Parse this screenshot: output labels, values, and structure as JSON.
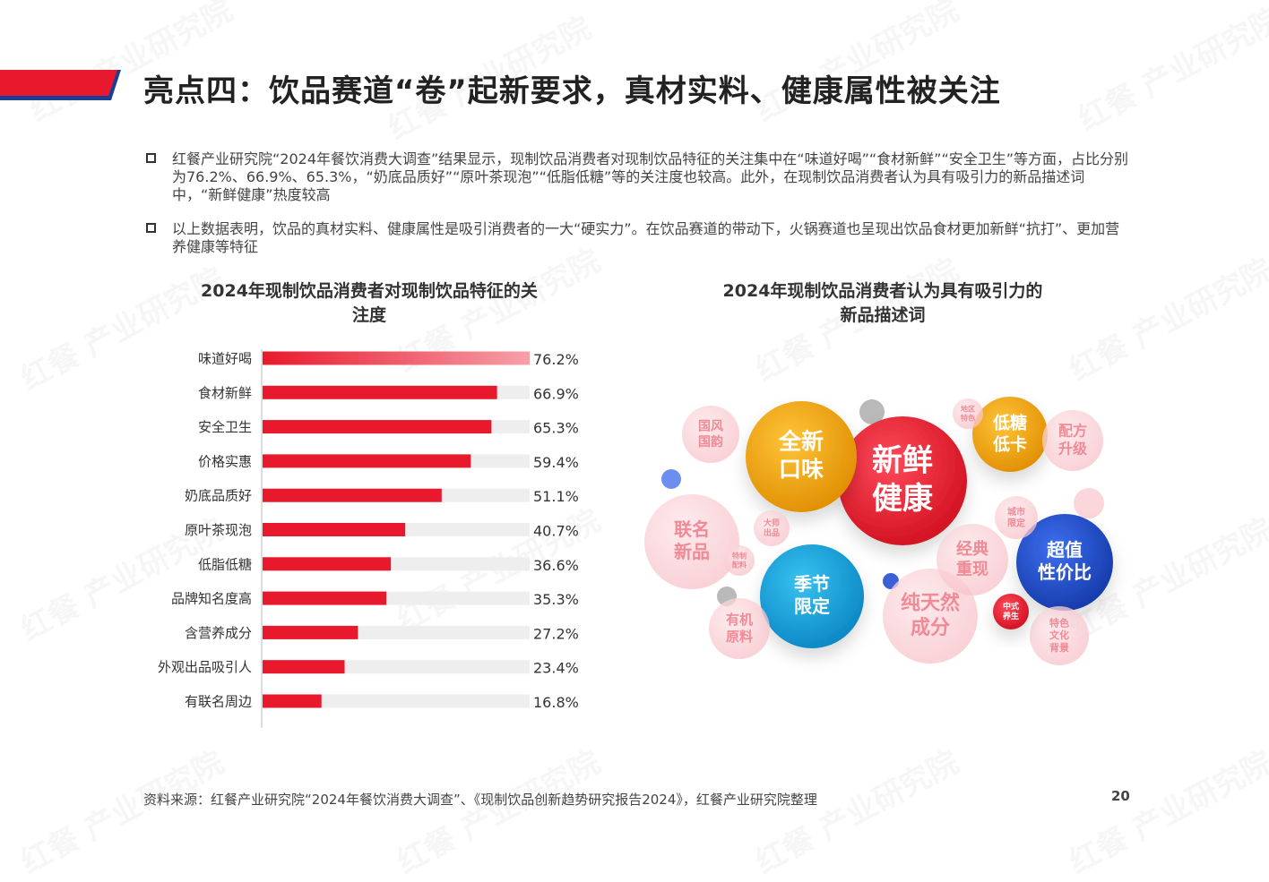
{
  "header": {
    "title": "亮点四：饮品赛道“卷”起新要求，真材实料、健康属性被关注",
    "accent_red": "#e8192c",
    "accent_blue": "#1c3f94"
  },
  "watermark_text": "红餐 产业研究院",
  "bullets": [
    "红餐产业研究院“2024年餐饮消费大调查”结果显示，现制饮品消费者对现制饮品特征的关注集中在“味道好喝”“食材新鲜”“安全卫生”等方面，占比分别为76.2%、66.9%、65.3%，“奶底品质好”“原叶茶现泡”“低脂低糖”等的关注度也较高。此外，在现制饮品消费者认为具有吸引力的新品描述词中，“新鲜健康”热度较高",
    "以上数据表明，饮品的真材实料、健康属性是吸引消费者的一大“硬实力”。在饮品赛道的带动下，火锅赛道也呈现出饮品食材更加新鲜“抗打”、更加营养健康等特征"
  ],
  "chart_data": [
    {
      "type": "bar",
      "title": "2024年现制饮品消费者对现制饮品特征的关注度",
      "orientation": "horizontal",
      "categories": [
        "味道好喝",
        "食材新鲜",
        "安全卫生",
        "价格实惠",
        "奶底品质好",
        "原叶茶现泡",
        "低脂低糖",
        "品牌知名度高",
        "含营养成分",
        "外观出品吸引人",
        "有联名周边"
      ],
      "values": [
        76.2,
        66.9,
        65.3,
        59.4,
        51.1,
        40.7,
        36.6,
        35.3,
        27.2,
        23.4,
        16.8
      ],
      "value_labels": [
        "76.2%",
        "66.9%",
        "65.3%",
        "59.4%",
        "51.1%",
        "40.7%",
        "36.6%",
        "35.3%",
        "27.2%",
        "23.4%",
        "16.8%"
      ],
      "xlim": [
        0,
        76.2
      ],
      "bar_color": "#e8192c",
      "track_color": "#eeeeee"
    },
    {
      "type": "bubble",
      "title": "2024年现制饮品消费者认为具有吸引力的新品描述词",
      "bubbles": [
        {
          "label": [
            "新鲜",
            "健康"
          ],
          "color": "#e8192c",
          "style": "solid"
        },
        {
          "label": [
            "全新",
            "口味"
          ],
          "color": "#f2a515",
          "style": "solid"
        },
        {
          "label": [
            "季节",
            "限定"
          ],
          "color": "#1aa0d8",
          "style": "solid"
        },
        {
          "label": [
            "超值",
            "性价比"
          ],
          "color": "#1f4fc4",
          "style": "solid"
        },
        {
          "label": [
            "低糖",
            "低卡"
          ],
          "color": "#f2a515",
          "style": "solid"
        },
        {
          "label": [
            "联名",
            "新品"
          ],
          "color": "#f9c7cc",
          "style": "faded"
        },
        {
          "label": [
            "纯天然",
            "成分"
          ],
          "color": "#f9c7cc",
          "style": "faded"
        },
        {
          "label": [
            "经典",
            "重现"
          ],
          "color": "#f9c7cc",
          "style": "faded"
        },
        {
          "label": [
            "国风",
            "国韵"
          ],
          "color": "#f9c7cc",
          "style": "faded"
        },
        {
          "label": [
            "配方",
            "升级"
          ],
          "color": "#f9c7cc",
          "style": "faded"
        },
        {
          "label": [
            "有机",
            "原料"
          ],
          "color": "#f9c7cc",
          "style": "faded"
        },
        {
          "label": [
            "特色",
            "文化",
            "背景"
          ],
          "color": "#f9c7cc",
          "style": "faded"
        },
        {
          "label": [
            "中式",
            "养生"
          ],
          "color": "#e8192c",
          "style": "solid"
        },
        {
          "label": [
            "大师",
            "出品"
          ],
          "color": "#f9c7cc",
          "style": "faded"
        },
        {
          "label": [
            "特制",
            "配料"
          ],
          "color": "#f9c7cc",
          "style": "faded"
        },
        {
          "label": [
            "城市",
            "限定"
          ],
          "color": "#f9c7cc",
          "style": "faded"
        },
        {
          "label": [
            "地区",
            "特色"
          ],
          "color": "#f9c7cc",
          "style": "faded"
        }
      ]
    }
  ],
  "footer": {
    "source": "资料来源：红餐产业研究院“2024年餐饮消费大调查”、《现制饮品创新趋势研究报告2024》，红餐产业研究院整理",
    "page": "20"
  }
}
